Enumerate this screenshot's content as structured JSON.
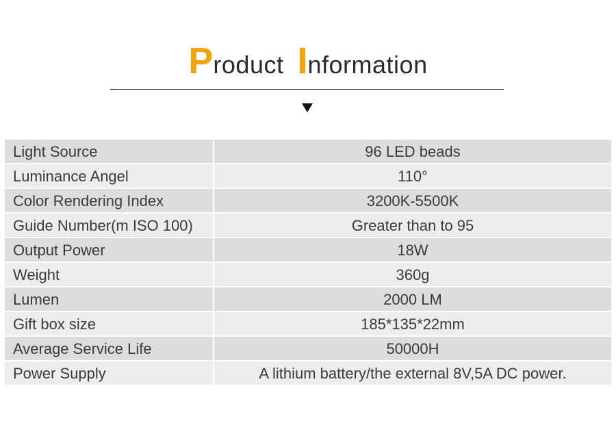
{
  "header": {
    "word1_initial": "P",
    "word1_rest": "roduct",
    "word2_initial": "I",
    "word2_rest": "nformation",
    "accent_color": "#f5a30b",
    "indicator_icon": "triangle-down-icon"
  },
  "specs": [
    {
      "label": "Light Source",
      "value": "96 LED beads"
    },
    {
      "label": "Luminance Angel",
      "value": "110°"
    },
    {
      "label": "Color Rendering Index",
      "value": "3200K-5500K"
    },
    {
      "label": "Guide Number(m ISO 100)",
      "value": "Greater than to 95"
    },
    {
      "label": "Output Power",
      "value": "18W"
    },
    {
      "label": "Weight",
      "value": "360g"
    },
    {
      "label": "Lumen",
      "value": "2000 LM"
    },
    {
      "label": "Gift box size",
      "value": "185*135*22mm"
    },
    {
      "label": "Average Service Life",
      "value": "50000H"
    },
    {
      "label": "Power Supply",
      "value": "A lithium battery/the external 8V,5A DC power."
    }
  ]
}
